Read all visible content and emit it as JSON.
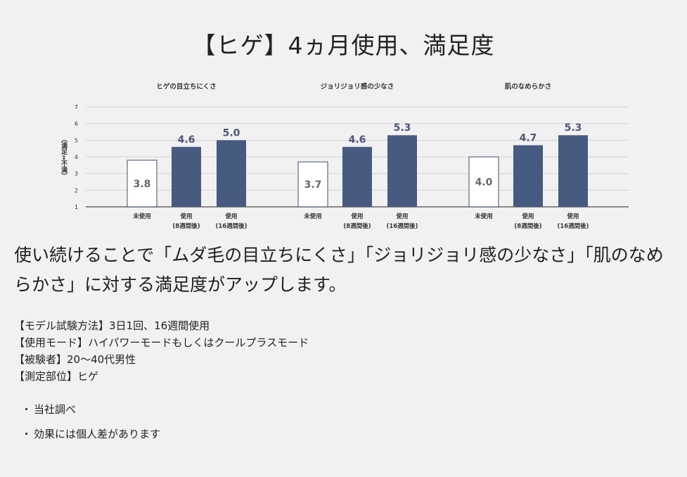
{
  "title": "【ヒゲ】4ヵ月使用、満足度",
  "chart_data": {
    "type": "bar",
    "ylabel": "（満足⇔不満）",
    "ylim": [
      1,
      7
    ],
    "yticks": [
      1,
      2,
      3,
      4,
      5,
      6,
      7
    ],
    "grid": true,
    "colors": {
      "untreated_fill": "#ffffff",
      "untreated_stroke": "#3d4e6f",
      "treated_fill": "#475a80",
      "label": "#4a5676",
      "axis": "#666666"
    },
    "groups": [
      {
        "title": "ヒゲの目立ちにくさ",
        "categories": [
          {
            "line1": "未使用",
            "line2": "",
            "value": 3.8,
            "label": "3.8"
          },
          {
            "line1": "使用",
            "line2": "(8週間後)",
            "value": 4.6,
            "label": "4.6"
          },
          {
            "line1": "使用",
            "line2": "(16週間後)",
            "value": 5.0,
            "label": "5.0"
          }
        ]
      },
      {
        "title": "ジョリジョリ感の少なさ",
        "categories": [
          {
            "line1": "未使用",
            "line2": "",
            "value": 3.7,
            "label": "3.7"
          },
          {
            "line1": "使用",
            "line2": "(8週間後)",
            "value": 4.6,
            "label": "4.6"
          },
          {
            "line1": "使用",
            "line2": "(16週間後)",
            "value": 5.3,
            "label": "5.3"
          }
        ]
      },
      {
        "title": "肌のなめらかさ",
        "categories": [
          {
            "line1": "未使用",
            "line2": "",
            "value": 4.0,
            "label": "4.0"
          },
          {
            "line1": "使用",
            "line2": "(8週間後)",
            "value": 4.7,
            "label": "4.7"
          },
          {
            "line1": "使用",
            "line2": "(16週間後)",
            "value": 5.3,
            "label": "5.3"
          }
        ]
      }
    ]
  },
  "lead": "使い続けることで「ムダ毛の目立ちにくさ」「ジョリジョリ感の少なさ」「肌のなめらかさ」に対する満足度がアップします。",
  "methods": [
    "【モデル試験方法】3日1回、16週間使用",
    "【使用モード】ハイパワーモードもしくはクールプラスモード",
    "【被験者】20〜40代男性",
    "【測定部位】ヒゲ"
  ],
  "notes": {
    "bullet": "・",
    "items": [
      "当社調べ",
      "効果には個人差があります"
    ]
  }
}
